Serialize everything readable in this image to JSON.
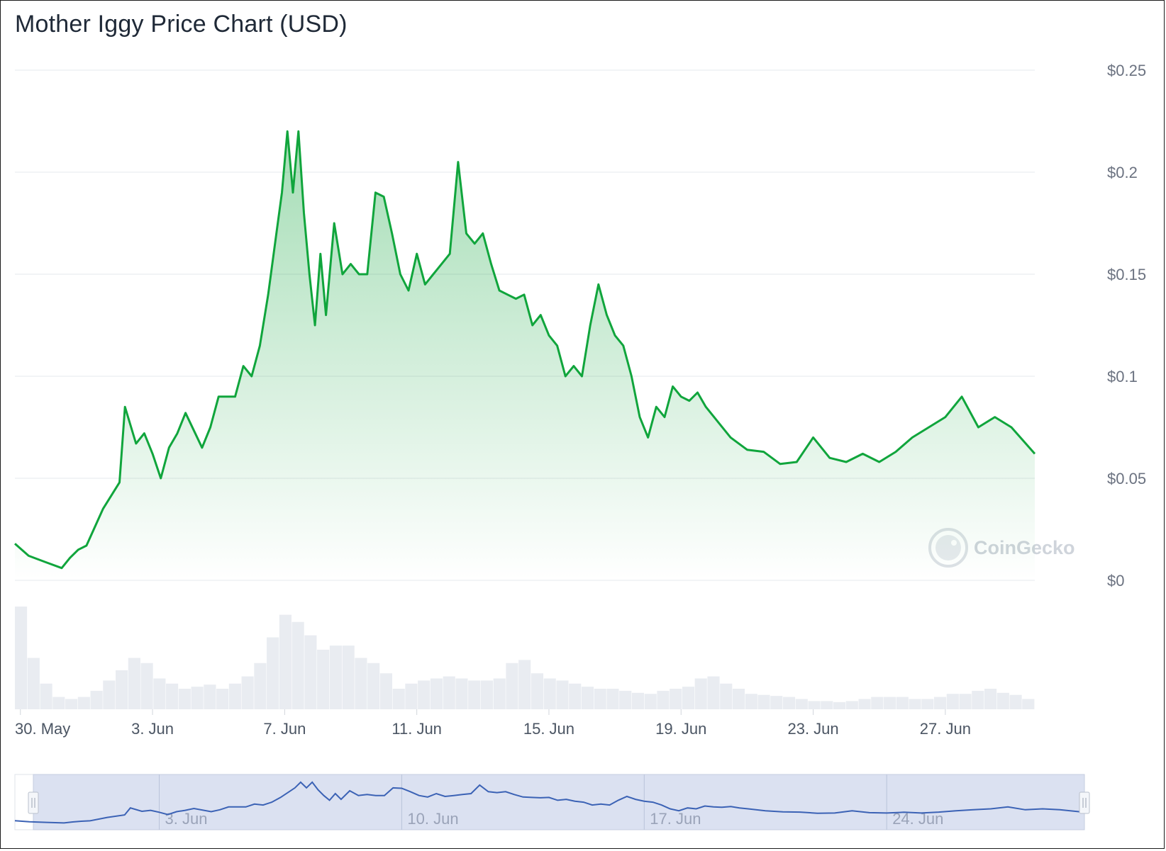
{
  "title": "Mother Iggy Price Chart (USD)",
  "watermark": "CoinGecko",
  "colors": {
    "price_line": "#10a53c",
    "price_fill": "#10a53c",
    "volume": "#e9ecf1",
    "navigator_line": "#3b62b5",
    "navigator_mask": "#d5dcee"
  },
  "chart_data": {
    "type": "area",
    "title": "Mother Iggy Price Chart (USD)",
    "ylabel": "",
    "xlabel": "",
    "yticks": [
      "$0",
      "$0.05",
      "$0.1",
      "$0.15",
      "$0.2",
      "$0.25"
    ],
    "ylim": [
      0,
      0.25
    ],
    "xticks": [
      "30. May",
      "3. Jun",
      "7. Jun",
      "11. Jun",
      "15. Jun",
      "19. Jun",
      "23. Jun",
      "27. Jun"
    ],
    "xlim": [
      "2024-05-29T20:00",
      "2024-06-29T17:00"
    ],
    "grid": true,
    "price": {
      "x": [
        "2024-05-29T20:00",
        "2024-05-30T06:00",
        "2024-05-30T18:00",
        "2024-05-31T06:00",
        "2024-05-31T12:00",
        "2024-05-31T18:00",
        "2024-06-01T00:00",
        "2024-06-01T12:00",
        "2024-06-02T00:00",
        "2024-06-02T04:00",
        "2024-06-02T12:00",
        "2024-06-02T18:00",
        "2024-06-03T00:00",
        "2024-06-03T06:00",
        "2024-06-03T12:00",
        "2024-06-03T18:00",
        "2024-06-04T00:00",
        "2024-06-04T12:00",
        "2024-06-04T18:00",
        "2024-06-05T00:00",
        "2024-06-05T12:00",
        "2024-06-05T18:00",
        "2024-06-06T00:00",
        "2024-06-06T06:00",
        "2024-06-06T12:00",
        "2024-06-06T18:00",
        "2024-06-06T22:00",
        "2024-06-07T02:00",
        "2024-06-07T06:00",
        "2024-06-07T10:00",
        "2024-06-07T14:00",
        "2024-06-07T18:00",
        "2024-06-07T22:00",
        "2024-06-08T02:00",
        "2024-06-08T06:00",
        "2024-06-08T12:00",
        "2024-06-08T18:00",
        "2024-06-09T00:00",
        "2024-06-09T06:00",
        "2024-06-09T12:00",
        "2024-06-09T18:00",
        "2024-06-10T00:00",
        "2024-06-10T06:00",
        "2024-06-10T12:00",
        "2024-06-10T18:00",
        "2024-06-11T00:00",
        "2024-06-11T06:00",
        "2024-06-11T12:00",
        "2024-06-11T18:00",
        "2024-06-12T00:00",
        "2024-06-12T06:00",
        "2024-06-12T12:00",
        "2024-06-12T18:00",
        "2024-06-13T00:00",
        "2024-06-13T06:00",
        "2024-06-13T12:00",
        "2024-06-13T18:00",
        "2024-06-14T00:00",
        "2024-06-14T06:00",
        "2024-06-14T12:00",
        "2024-06-14T18:00",
        "2024-06-15T00:00",
        "2024-06-15T06:00",
        "2024-06-15T12:00",
        "2024-06-15T18:00",
        "2024-06-16T00:00",
        "2024-06-16T06:00",
        "2024-06-16T12:00",
        "2024-06-16T18:00",
        "2024-06-17T00:00",
        "2024-06-17T06:00",
        "2024-06-17T12:00",
        "2024-06-17T18:00",
        "2024-06-18T00:00",
        "2024-06-18T06:00",
        "2024-06-18T12:00",
        "2024-06-18T18:00",
        "2024-06-19T00:00",
        "2024-06-19T06:00",
        "2024-06-19T12:00",
        "2024-06-19T18:00",
        "2024-06-20T00:00",
        "2024-06-20T12:00",
        "2024-06-21T00:00",
        "2024-06-21T12:00",
        "2024-06-22T00:00",
        "2024-06-22T12:00",
        "2024-06-23T00:00",
        "2024-06-23T12:00",
        "2024-06-24T00:00",
        "2024-06-24T12:00",
        "2024-06-25T00:00",
        "2024-06-25T12:00",
        "2024-06-26T00:00",
        "2024-06-26T12:00",
        "2024-06-27T00:00",
        "2024-06-27T12:00",
        "2024-06-28T00:00",
        "2024-06-28T12:00",
        "2024-06-29T00:00",
        "2024-06-29T17:00"
      ],
      "values": [
        0.018,
        0.012,
        0.009,
        0.006,
        0.011,
        0.015,
        0.017,
        0.035,
        0.048,
        0.085,
        0.067,
        0.072,
        0.062,
        0.05,
        0.065,
        0.072,
        0.082,
        0.065,
        0.075,
        0.09,
        0.09,
        0.105,
        0.1,
        0.115,
        0.14,
        0.17,
        0.19,
        0.22,
        0.19,
        0.22,
        0.18,
        0.15,
        0.125,
        0.16,
        0.13,
        0.175,
        0.15,
        0.155,
        0.15,
        0.15,
        0.19,
        0.188,
        0.17,
        0.15,
        0.142,
        0.16,
        0.145,
        0.15,
        0.155,
        0.16,
        0.205,
        0.17,
        0.165,
        0.17,
        0.155,
        0.142,
        0.14,
        0.138,
        0.14,
        0.125,
        0.13,
        0.12,
        0.115,
        0.1,
        0.105,
        0.1,
        0.125,
        0.145,
        0.13,
        0.12,
        0.115,
        0.1,
        0.08,
        0.07,
        0.085,
        0.08,
        0.095,
        0.09,
        0.088,
        0.092,
        0.085,
        0.08,
        0.07,
        0.064,
        0.063,
        0.057,
        0.058,
        0.07,
        0.06,
        0.058,
        0.062,
        0.058,
        0.063,
        0.07,
        0.075,
        0.08,
        0.09,
        0.075,
        0.08,
        0.075,
        0.062
      ]
    },
    "volume": {
      "note": "relative trading volume, unlabeled axis",
      "values": [
        1.0,
        0.5,
        0.25,
        0.12,
        0.1,
        0.12,
        0.18,
        0.28,
        0.38,
        0.5,
        0.45,
        0.3,
        0.25,
        0.2,
        0.22,
        0.24,
        0.2,
        0.25,
        0.32,
        0.45,
        0.7,
        0.92,
        0.85,
        0.72,
        0.58,
        0.62,
        0.62,
        0.5,
        0.45,
        0.35,
        0.2,
        0.25,
        0.28,
        0.3,
        0.32,
        0.3,
        0.28,
        0.28,
        0.3,
        0.45,
        0.48,
        0.35,
        0.3,
        0.28,
        0.25,
        0.22,
        0.2,
        0.2,
        0.18,
        0.16,
        0.15,
        0.18,
        0.2,
        0.22,
        0.3,
        0.32,
        0.25,
        0.2,
        0.15,
        0.14,
        0.13,
        0.12,
        0.1,
        0.08,
        0.08,
        0.07,
        0.08,
        0.1,
        0.12,
        0.12,
        0.12,
        0.1,
        0.1,
        0.12,
        0.15,
        0.15,
        0.18,
        0.2,
        0.16,
        0.14,
        0.1
      ]
    },
    "navigator": {
      "xticks": [
        "3. Jun",
        "10. Jun",
        "17. Jun",
        "24. Jun"
      ]
    }
  }
}
